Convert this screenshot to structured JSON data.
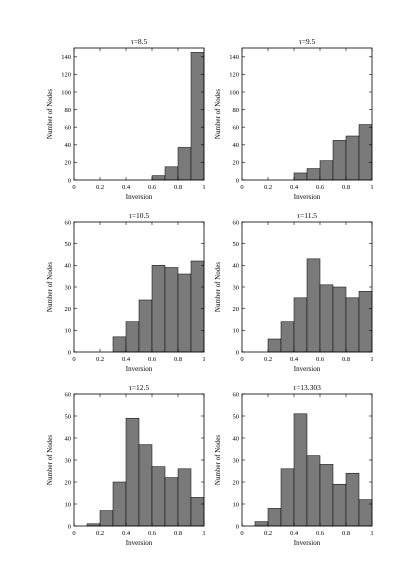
{
  "chart_data": [
    {
      "type": "bar",
      "title": "τ=8.5",
      "xlabel": "Inversion",
      "ylabel": "Number of Nodes",
      "xlim": [
        0,
        1
      ],
      "ylim": [
        0,
        150
      ],
      "xticks": [
        "0",
        "0.2",
        "0.4",
        "0.6",
        "0.8",
        "1"
      ],
      "yticks": [
        "0",
        "20",
        "40",
        "60",
        "80",
        "100",
        "120",
        "140"
      ],
      "bin_edges": [
        0,
        0.1,
        0.2,
        0.3,
        0.4,
        0.5,
        0.6,
        0.7,
        0.8,
        0.9,
        1.0
      ],
      "values": [
        0,
        0,
        0,
        0,
        0,
        0,
        5,
        15,
        37,
        145
      ]
    },
    {
      "type": "bar",
      "title": "τ=9.5",
      "xlabel": "Inversion",
      "ylabel": "Number of Nodes",
      "xlim": [
        0,
        1
      ],
      "ylim": [
        0,
        150
      ],
      "xticks": [
        "0",
        "0.2",
        "0.4",
        "0.6",
        "0.8",
        "1"
      ],
      "yticks": [
        "0",
        "20",
        "40",
        "60",
        "80",
        "100",
        "120",
        "140"
      ],
      "bin_edges": [
        0,
        0.1,
        0.2,
        0.3,
        0.4,
        0.5,
        0.6,
        0.7,
        0.8,
        0.9,
        1.0
      ],
      "values": [
        0,
        0,
        0,
        0,
        8,
        13,
        22,
        45,
        50,
        63
      ]
    },
    {
      "type": "bar",
      "title": "τ=10.5",
      "xlabel": "Inversion",
      "ylabel": "Number of Nodes",
      "xlim": [
        0,
        1
      ],
      "ylim": [
        0,
        60
      ],
      "xticks": [
        "0",
        "0.2",
        "0.4",
        "0.6",
        "0.8",
        "1"
      ],
      "yticks": [
        "0",
        "10",
        "20",
        "30",
        "40",
        "50",
        "60"
      ],
      "bin_edges": [
        0,
        0.1,
        0.2,
        0.3,
        0.4,
        0.5,
        0.6,
        0.7,
        0.8,
        0.9,
        1.0
      ],
      "values": [
        0,
        0,
        0,
        7,
        14,
        24,
        40,
        39,
        36,
        42
      ]
    },
    {
      "type": "bar",
      "title": "τ=11.5",
      "xlabel": "Inversion",
      "ylabel": "Number of Nodes",
      "xlim": [
        0,
        1
      ],
      "ylim": [
        0,
        60
      ],
      "xticks": [
        "0",
        "0.2",
        "0.4",
        "0.6",
        "0.8",
        "1"
      ],
      "yticks": [
        "0",
        "10",
        "20",
        "30",
        "40",
        "50",
        "60"
      ],
      "bin_edges": [
        0,
        0.1,
        0.2,
        0.3,
        0.4,
        0.5,
        0.6,
        0.7,
        0.8,
        0.9,
        1.0
      ],
      "values": [
        0,
        0,
        6,
        14,
        25,
        43,
        31,
        30,
        25,
        28
      ]
    },
    {
      "type": "bar",
      "title": "τ=12.5",
      "xlabel": "Inversion",
      "ylabel": "Number of Nodes",
      "xlim": [
        0,
        1
      ],
      "ylim": [
        0,
        60
      ],
      "xticks": [
        "0",
        "0.2",
        "0.4",
        "0.6",
        "0.8",
        "1"
      ],
      "yticks": [
        "0",
        "10",
        "20",
        "30",
        "40",
        "50",
        "60"
      ],
      "bin_edges": [
        0,
        0.1,
        0.2,
        0.3,
        0.4,
        0.5,
        0.6,
        0.7,
        0.8,
        0.9,
        1.0
      ],
      "values": [
        0,
        1,
        7,
        20,
        49,
        37,
        27,
        22,
        26,
        13
      ]
    },
    {
      "type": "bar",
      "title": "τ=13.303",
      "xlabel": "Inversion",
      "ylabel": "Number of Nodes",
      "xlim": [
        0,
        1
      ],
      "ylim": [
        0,
        60
      ],
      "xticks": [
        "0",
        "0.2",
        "0.4",
        "0.6",
        "0.8",
        "1"
      ],
      "yticks": [
        "0",
        "10",
        "20",
        "30",
        "40",
        "50",
        "60"
      ],
      "bin_edges": [
        0,
        0.1,
        0.2,
        0.3,
        0.4,
        0.5,
        0.6,
        0.7,
        0.8,
        0.9,
        1.0
      ],
      "values": [
        0,
        2,
        8,
        26,
        51,
        32,
        28,
        19,
        24,
        12
      ]
    }
  ]
}
